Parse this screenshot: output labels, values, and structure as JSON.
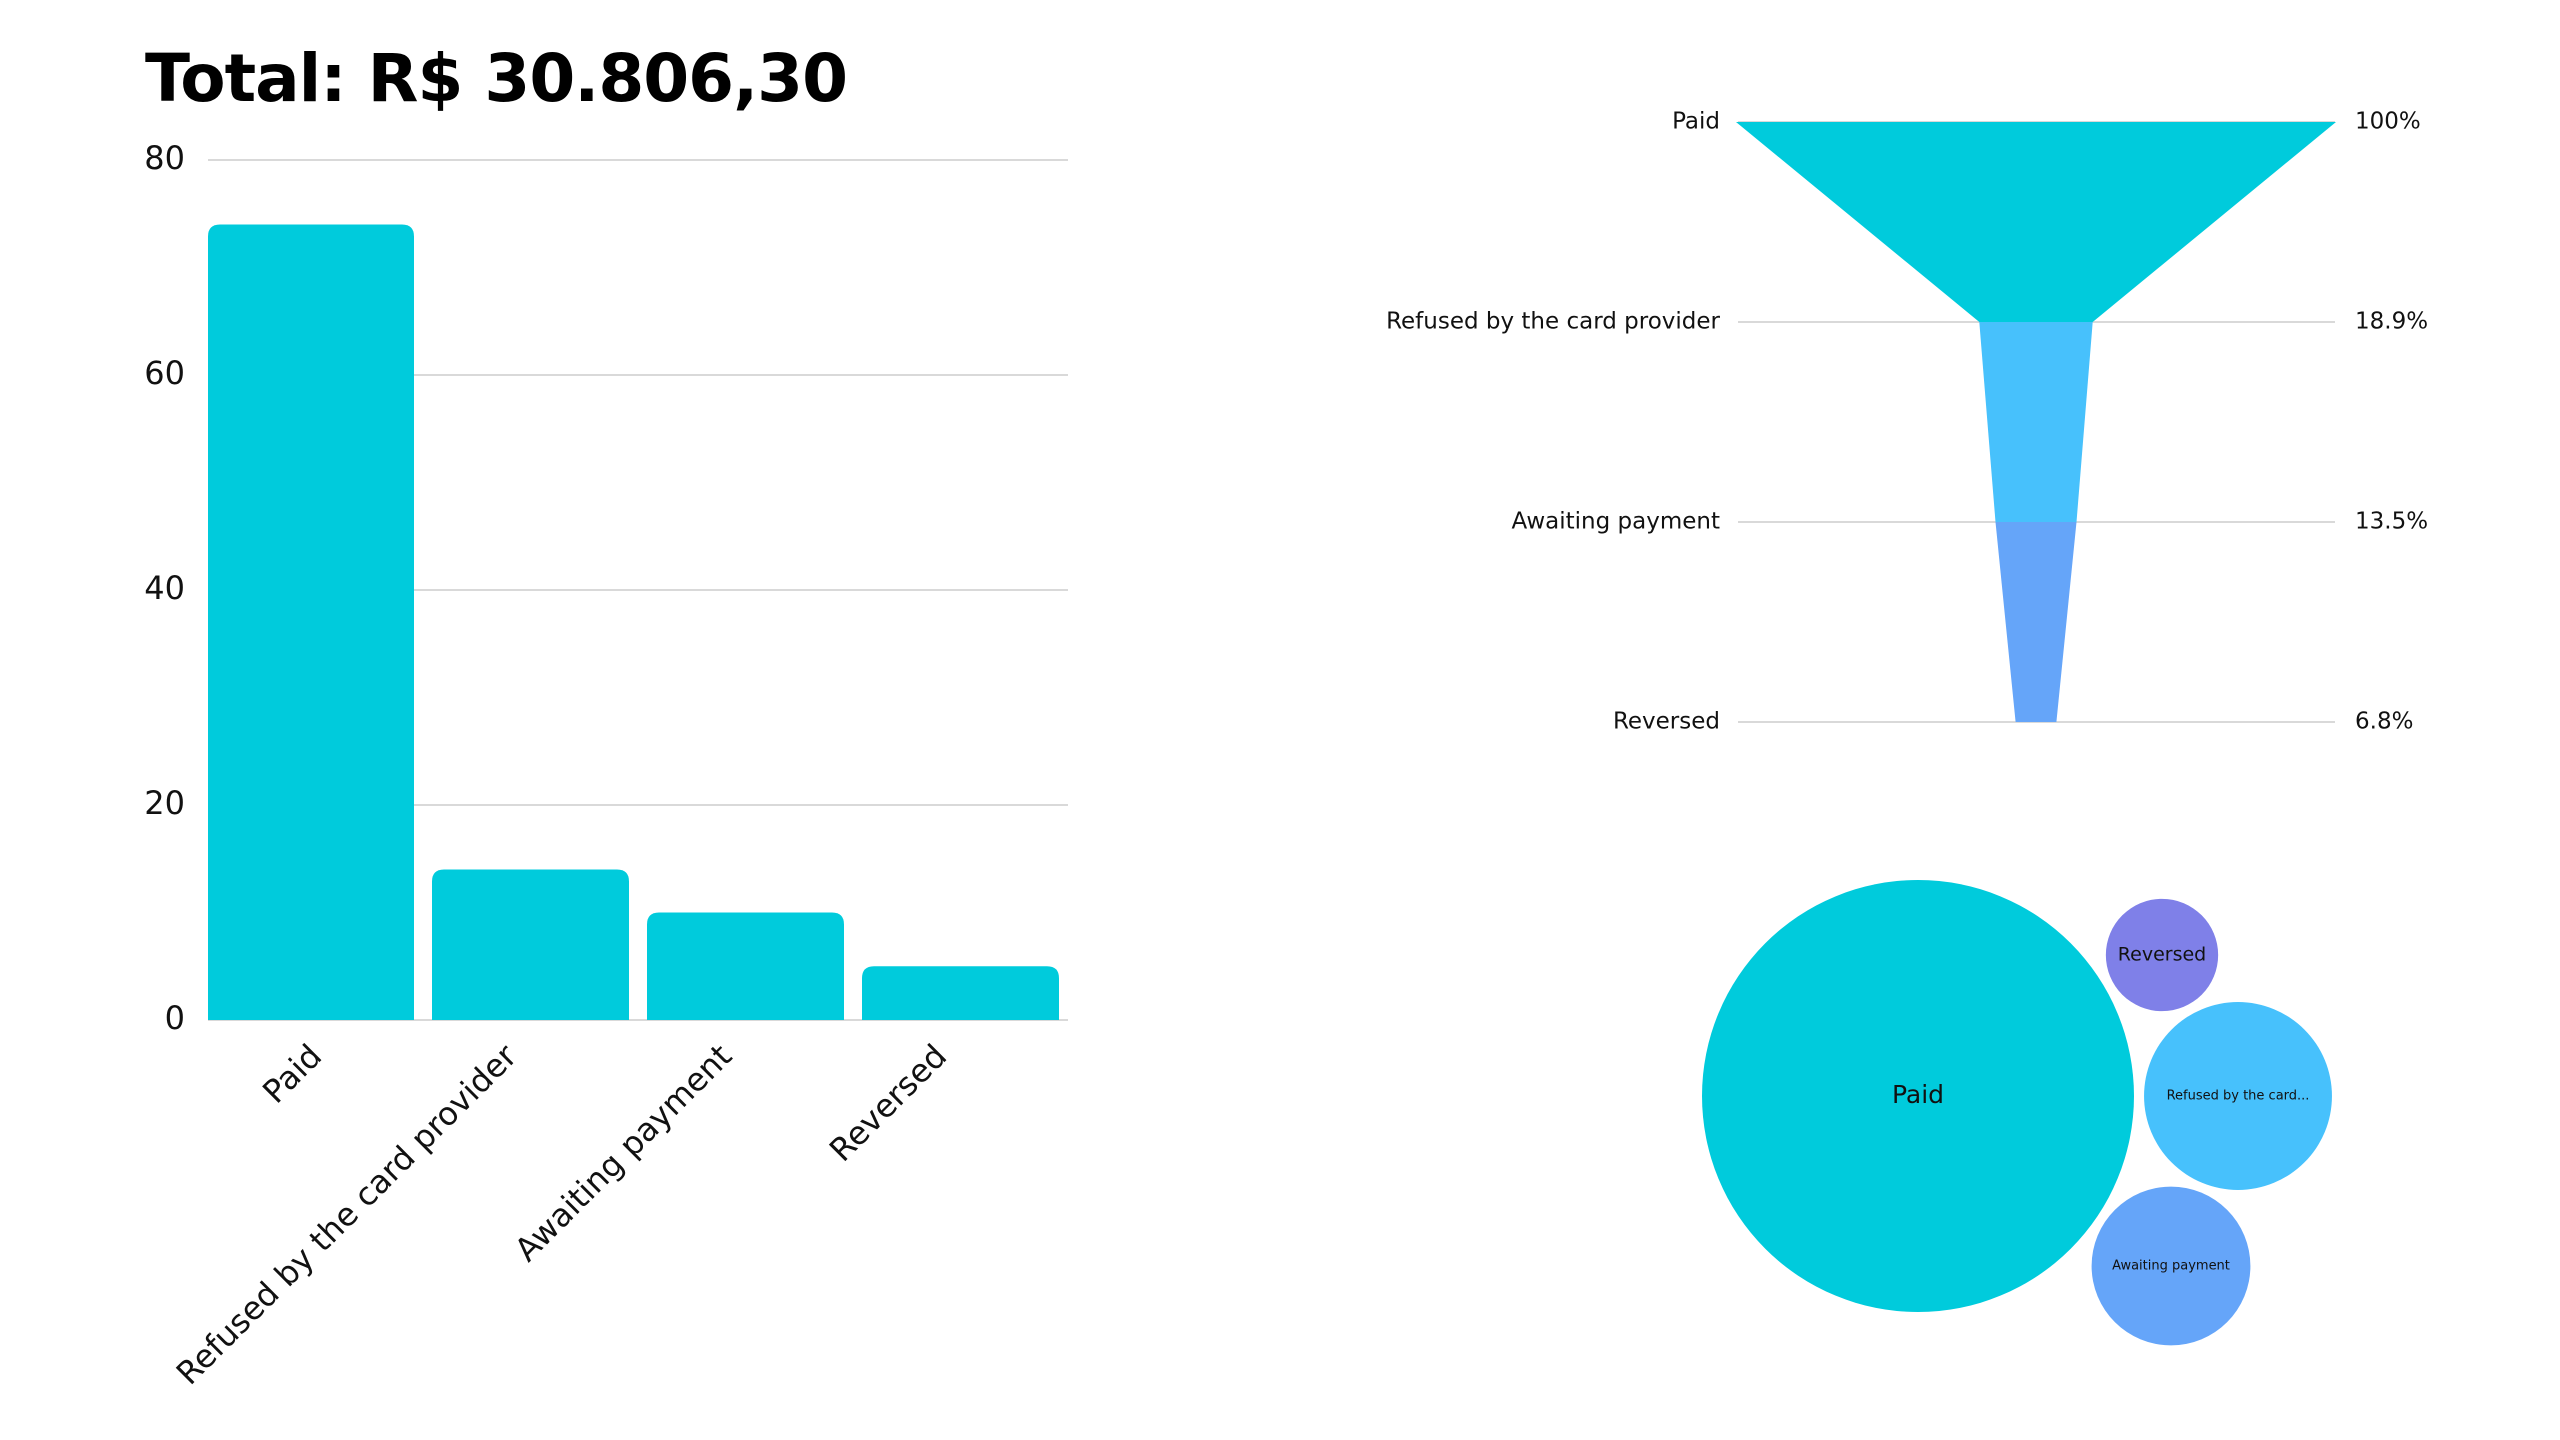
{
  "title": "Total: R$ 30.806,30",
  "colors": {
    "teal": "#00CBDC",
    "sky": "#47C1FC",
    "blue": "#65A5F9",
    "purple": "#7F80E8",
    "grid": "#d9d9d9"
  },
  "chart_data": [
    {
      "type": "bar",
      "categories": [
        "Paid",
        "Refused by the card provider",
        "Awaiting payment",
        "Reversed"
      ],
      "values": [
        74,
        14,
        10,
        5
      ],
      "yticks": [
        "0",
        "20",
        "40",
        "60",
        "80"
      ],
      "ylim": [
        0,
        80
      ],
      "grid": true
    },
    {
      "type": "funnel",
      "categories": [
        "Paid",
        "Refused by the card provider",
        "Awaiting payment",
        "Reversed"
      ],
      "percent_labels": [
        "100%",
        "18.9%",
        "13.5%",
        "6.8%"
      ],
      "values": [
        100,
        18.9,
        13.5,
        6.8
      ]
    },
    {
      "type": "bubble",
      "labels": [
        "Paid",
        "Reversed",
        "Refused by the card...",
        "Awaiting payment"
      ],
      "values": [
        74,
        5,
        14,
        10
      ]
    }
  ]
}
